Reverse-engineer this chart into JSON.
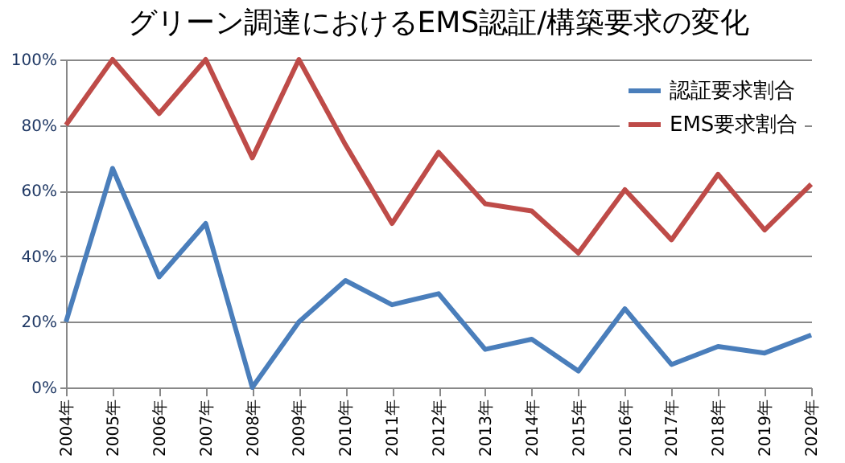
{
  "chart_data": {
    "type": "line",
    "title": "グリーン調達におけるEMS認証/構築要求の変化",
    "categories": [
      "2004年",
      "2005年",
      "2006年",
      "2007年",
      "2008年",
      "2009年",
      "2010年",
      "2011年",
      "2012年",
      "2013年",
      "2014年",
      "2015年",
      "2016年",
      "2017年",
      "2018年",
      "2019年",
      "2020年"
    ],
    "series": [
      {
        "name": "認証要求割合",
        "color": "#4a7ebb",
        "values": [
          20,
          66.8,
          33.7,
          50,
          0,
          20,
          32.6,
          25.2,
          28.6,
          11.6,
          14.7,
          5,
          24,
          7,
          12.5,
          10.5,
          16
        ]
      },
      {
        "name": "EMS要求割合",
        "color": "#be4b48",
        "values": [
          80,
          100,
          83.5,
          100,
          70,
          100,
          74,
          50,
          71.7,
          56,
          53.8,
          41,
          60.3,
          45,
          65,
          48,
          62
        ]
      }
    ],
    "ylim": [
      0,
      100
    ],
    "yticks": [
      {
        "value": 0,
        "label": "0%"
      },
      {
        "value": 20,
        "label": "20%"
      },
      {
        "value": 40,
        "label": "40%"
      },
      {
        "value": 60,
        "label": "60%"
      },
      {
        "value": 80,
        "label": "80%"
      },
      {
        "value": 100,
        "label": "100%"
      }
    ],
    "grid": "y",
    "legend": "top right",
    "marker": "none",
    "line_style": "solid"
  }
}
